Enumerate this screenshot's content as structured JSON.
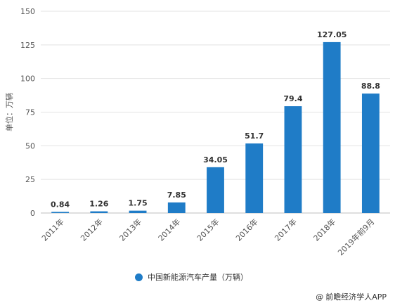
{
  "chart_data": {
    "type": "bar",
    "categories": [
      "2011年",
      "2012年",
      "2013年",
      "2014年",
      "2015年",
      "2016年",
      "2017年",
      "2018年",
      "2019年前9月"
    ],
    "series": [
      {
        "name": "中国新能源汽车产量（万辆）",
        "values": [
          0.84,
          1.26,
          1.75,
          7.85,
          34.05,
          51.7,
          79.4,
          127.05,
          88.8
        ],
        "labels": [
          "0.84",
          "1.26",
          "1.75",
          "7.85",
          "34.05",
          "51.7",
          "79.4",
          "127.05",
          "88.8"
        ]
      }
    ],
    "ylabel": "单位：万辆",
    "ylim": [
      0,
      150
    ],
    "yticks": [
      0,
      25,
      50,
      75,
      100,
      125,
      150
    ],
    "grid": true,
    "legend_position": "bottom",
    "bar_color": "#1f7cc7"
  },
  "source": "前瞻经济学人APP"
}
